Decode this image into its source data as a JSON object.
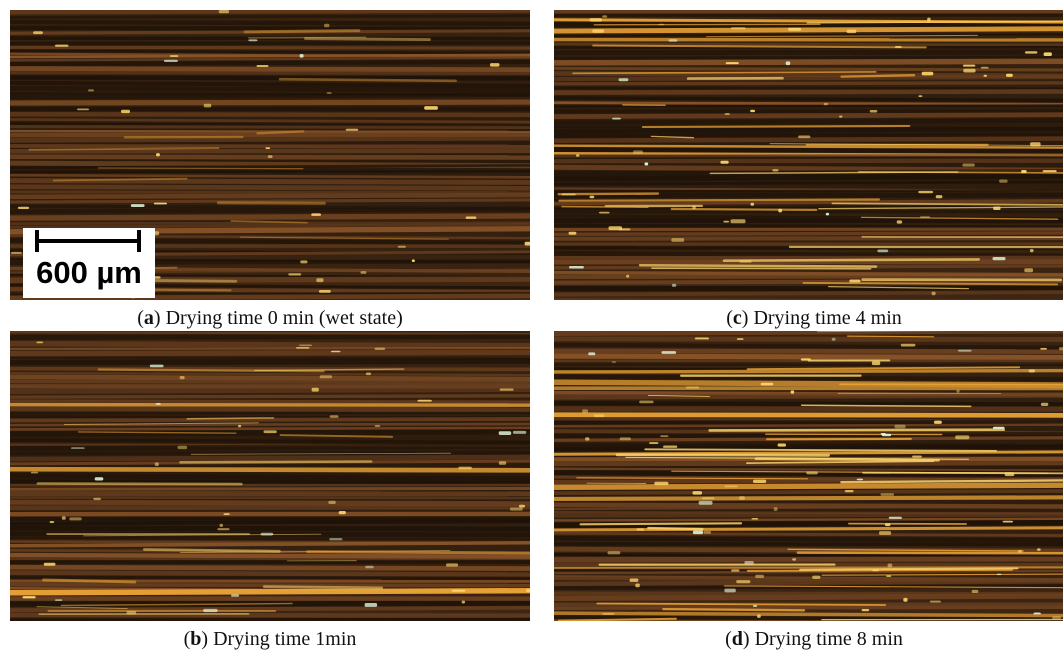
{
  "panels": [
    {
      "key": "a",
      "letter": "a",
      "caption": "Drying time 0 min (wet state)",
      "brightness": 0.15
    },
    {
      "key": "b",
      "letter": "b",
      "caption": "Drying time 1min",
      "brightness": 0.35
    },
    {
      "key": "c",
      "letter": "c",
      "caption": "Drying time 4 min",
      "brightness": 0.65
    },
    {
      "key": "d",
      "letter": "d",
      "caption": "Drying time 8 min",
      "brightness": 0.85
    }
  ],
  "scale_bar": {
    "label": "600 µm"
  },
  "colors": {
    "fiber_dark": "#1e1208",
    "fiber_mid": "#6b4020",
    "fiber_bright": "#f0a838",
    "highlight": "#ffd870"
  }
}
